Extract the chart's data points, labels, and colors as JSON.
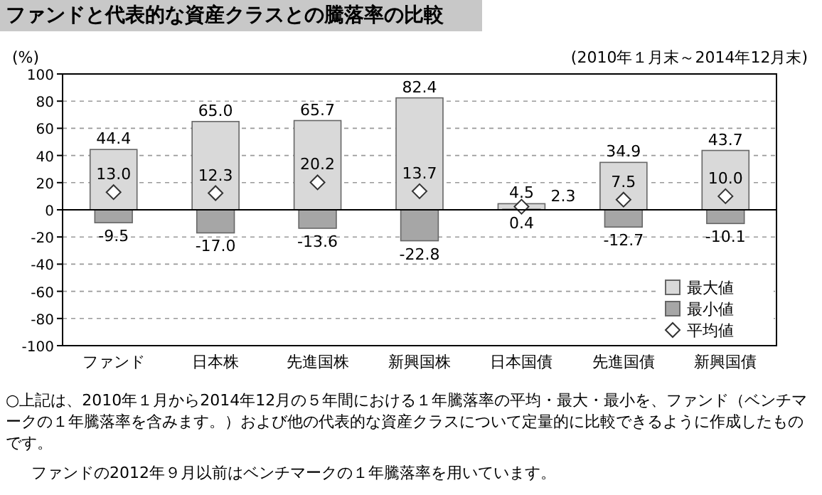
{
  "chart_data": {
    "type": "bar",
    "title": "ファンドと代表的な資産クラスとの騰落率の比較",
    "subtitle": "(2010年１月末～2014年12月末)",
    "ylabel": "(%)",
    "categories": [
      "ファンド",
      "日本株",
      "先進国株",
      "新興国株",
      "日本国債",
      "先進国債",
      "新興国債"
    ],
    "series": [
      {
        "name": "最大値",
        "color": "#d9d9d9",
        "values": [
          44.4,
          65.0,
          65.7,
          82.4,
          4.5,
          34.9,
          43.7
        ],
        "value_labels": [
          "44.4",
          "65.0",
          "65.7",
          "82.4",
          "4.5",
          "34.9",
          "43.7"
        ]
      },
      {
        "name": "最小値",
        "color": "#a6a6a6",
        "values": [
          -9.5,
          -17.0,
          -13.6,
          -22.8,
          0.4,
          -12.7,
          -10.1
        ],
        "value_labels": [
          "-9.5",
          "-17.0",
          "-13.6",
          "-22.8",
          "0.4",
          "-12.7",
          "-10.1"
        ]
      },
      {
        "name": "平均値",
        "type": "scatter",
        "marker": "diamond",
        "color": "#ffffff",
        "values": [
          13.0,
          12.3,
          20.2,
          13.7,
          2.3,
          7.5,
          10.0
        ],
        "value_labels": [
          "13.0",
          "12.3",
          "20.2",
          "13.7",
          "2.3",
          "7.5",
          "10.0"
        ]
      }
    ],
    "ylim": [
      -100,
      100
    ],
    "yticks": [
      -100,
      -80,
      -60,
      -40,
      -20,
      0,
      20,
      40,
      60,
      80,
      100
    ],
    "grid": "y",
    "legend": "bottom right",
    "annotations": [
      "○上記は、2010年１月から2014年12月の５年間における１年騰落率の平均・最大・最小を、ファンド（ベンチマークの１年騰落率を含みます。）および他の代表的な資産クラスについて定量的に比較できるように作成したものです。",
      "ファンドの2012年９月以前はベンチマークの１年騰落率を用いています。"
    ]
  }
}
